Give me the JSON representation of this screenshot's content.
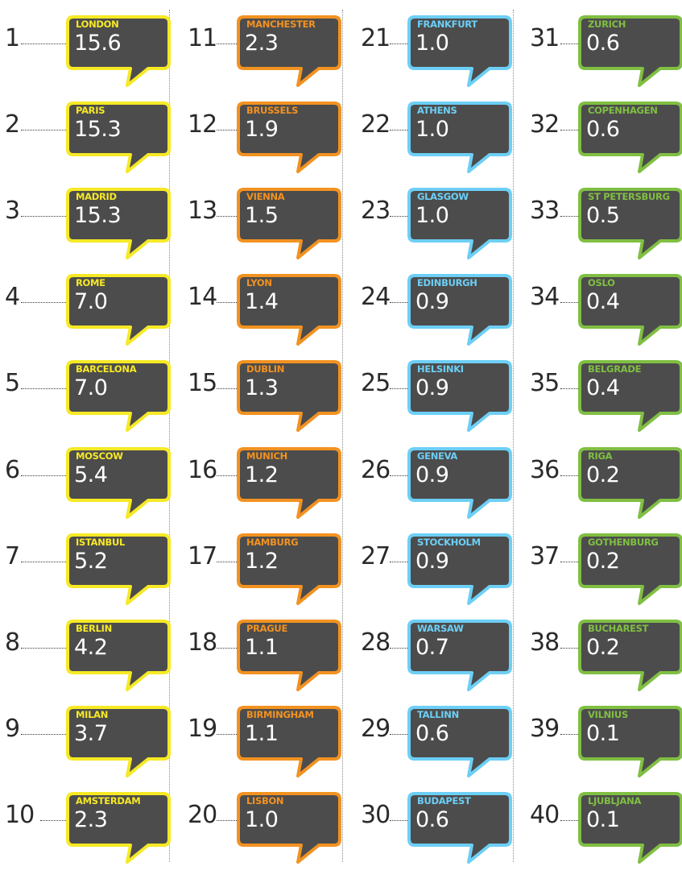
{
  "colors": {
    "yellow": "#f6e925",
    "orange": "#f29221",
    "blue": "#6ccff6",
    "green": "#80bf42",
    "bubble_fill": "#4c4c4c"
  },
  "columns": [
    {
      "color": "yellow",
      "items": [
        {
          "rank": "1",
          "city": "LONDON",
          "value": "15.6"
        },
        {
          "rank": "2",
          "city": "PARIS",
          "value": "15.3"
        },
        {
          "rank": "3",
          "city": "MADRID",
          "value": "15.3"
        },
        {
          "rank": "4",
          "city": "ROME",
          "value": "7.0"
        },
        {
          "rank": "5",
          "city": "BARCELONA",
          "value": "7.0"
        },
        {
          "rank": "6",
          "city": "MOSCOW",
          "value": "5.4"
        },
        {
          "rank": "7",
          "city": "ISTANBUL",
          "value": "5.2"
        },
        {
          "rank": "8",
          "city": "BERLIN",
          "value": "4.2"
        },
        {
          "rank": "9",
          "city": "MILAN",
          "value": "3.7"
        },
        {
          "rank": "10",
          "city": "AMSTERDAM",
          "value": "2.3"
        }
      ]
    },
    {
      "color": "orange",
      "items": [
        {
          "rank": "11",
          "city": "MANCHESTER",
          "value": "2.3"
        },
        {
          "rank": "12",
          "city": "BRUSSELS",
          "value": "1.9"
        },
        {
          "rank": "13",
          "city": "VIENNA",
          "value": "1.5"
        },
        {
          "rank": "14",
          "city": "LYON",
          "value": "1.4"
        },
        {
          "rank": "15",
          "city": "DUBLIN",
          "value": "1.3"
        },
        {
          "rank": "16",
          "city": "MUNICH",
          "value": "1.2"
        },
        {
          "rank": "17",
          "city": "HAMBURG",
          "value": "1.2"
        },
        {
          "rank": "18",
          "city": "PRAGUE",
          "value": "1.1"
        },
        {
          "rank": "19",
          "city": "BIRMINGHAM",
          "value": "1.1"
        },
        {
          "rank": "20",
          "city": "LISBON",
          "value": "1.0"
        }
      ]
    },
    {
      "color": "blue",
      "items": [
        {
          "rank": "21",
          "city": "FRANKFURT",
          "value": "1.0"
        },
        {
          "rank": "22",
          "city": "ATHENS",
          "value": "1.0"
        },
        {
          "rank": "23",
          "city": "GLASGOW",
          "value": "1.0"
        },
        {
          "rank": "24",
          "city": "EDINBURGH",
          "value": "0.9"
        },
        {
          "rank": "25",
          "city": "HELSINKI",
          "value": "0.9"
        },
        {
          "rank": "26",
          "city": "GENEVA",
          "value": "0.9"
        },
        {
          "rank": "27",
          "city": "STOCKHOLM",
          "value": "0.9"
        },
        {
          "rank": "28",
          "city": "WARSAW",
          "value": "0.7"
        },
        {
          "rank": "29",
          "city": "TALLINN",
          "value": "0.6"
        },
        {
          "rank": "30",
          "city": "BUDAPEST",
          "value": "0.6"
        }
      ]
    },
    {
      "color": "green",
      "items": [
        {
          "rank": "31",
          "city": "ZURICH",
          "value": "0.6"
        },
        {
          "rank": "32",
          "city": "COPENHAGEN",
          "value": "0.6"
        },
        {
          "rank": "33",
          "city": "ST PETERSBURG",
          "value": "0.5"
        },
        {
          "rank": "34",
          "city": "OSLO",
          "value": "0.4"
        },
        {
          "rank": "35",
          "city": "BELGRADE",
          "value": "0.4"
        },
        {
          "rank": "36",
          "city": "RIGA",
          "value": "0.2"
        },
        {
          "rank": "37",
          "city": "GOTHENBURG",
          "value": "0.2"
        },
        {
          "rank": "38",
          "city": "BUCHAREST",
          "value": "0.2"
        },
        {
          "rank": "39",
          "city": "VILNIUS",
          "value": "0.1"
        },
        {
          "rank": "40",
          "city": "LJUBLJANA",
          "value": "0.1"
        }
      ]
    }
  ]
}
